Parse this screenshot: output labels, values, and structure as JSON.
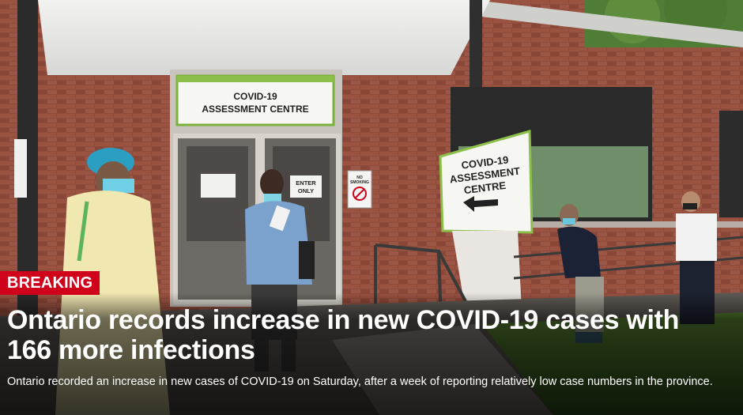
{
  "badge": {
    "label": "BREAKING",
    "color": "#d0021b"
  },
  "headline": "Ontario records increase in new COVID-19 cases with 166 more infections",
  "summary": "Ontario recorded an increase in new cases of COVID-19 on Saturday, after a week of reporting relatively low case numbers in the province.",
  "photo": {
    "door_sign": {
      "line1": "COVID-19",
      "line2": "ASSESSMENT CENTRE"
    },
    "door_notice": {
      "line1": "ENTER",
      "line2": "ONLY"
    },
    "standing_sign": {
      "line1": "COVID-19",
      "line2": "ASSESSMENT",
      "line3": "CENTRE"
    },
    "no_smoking_sign": {
      "line1": "NO",
      "line2": "SMOKING"
    }
  }
}
